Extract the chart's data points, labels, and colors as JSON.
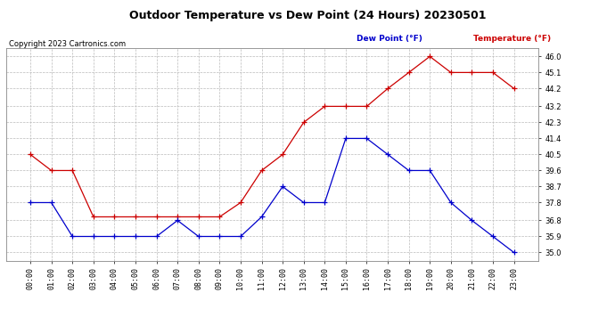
{
  "title": "Outdoor Temperature vs Dew Point (24 Hours) 20230501",
  "copyright_text": "Copyright 2023 Cartronics.com",
  "legend_dew": "Dew Point (°F)",
  "legend_temp": "Temperature (°F)",
  "hours": [
    "00:00",
    "01:00",
    "02:00",
    "03:00",
    "04:00",
    "05:00",
    "06:00",
    "07:00",
    "08:00",
    "09:00",
    "10:00",
    "11:00",
    "12:00",
    "13:00",
    "14:00",
    "15:00",
    "16:00",
    "17:00",
    "18:00",
    "19:00",
    "20:00",
    "21:00",
    "22:00",
    "23:00"
  ],
  "temperature": [
    40.5,
    39.6,
    39.6,
    37.0,
    37.0,
    37.0,
    37.0,
    37.0,
    37.0,
    37.0,
    37.8,
    39.6,
    40.5,
    42.3,
    43.2,
    43.2,
    43.2,
    44.2,
    45.1,
    46.0,
    45.1,
    45.1,
    45.1,
    44.2
  ],
  "dew_point": [
    37.8,
    37.8,
    35.9,
    35.9,
    35.9,
    35.9,
    35.9,
    36.8,
    35.9,
    35.9,
    35.9,
    37.0,
    38.7,
    37.8,
    37.8,
    41.4,
    41.4,
    40.5,
    39.6,
    39.6,
    37.8,
    36.8,
    35.9,
    35.0
  ],
  "temp_color": "#cc0000",
  "dew_color": "#0000cc",
  "ylim_min": 34.55,
  "ylim_max": 46.45,
  "yticks": [
    35.0,
    35.9,
    36.8,
    37.8,
    38.7,
    39.6,
    40.5,
    41.4,
    42.3,
    43.2,
    44.2,
    45.1,
    46.0
  ],
  "background_color": "#ffffff",
  "grid_color": "#bbbbbb",
  "title_fontsize": 9,
  "label_fontsize": 6,
  "copyright_fontsize": 6,
  "legend_fontsize": 6.5,
  "marker_size": 4,
  "linewidth": 0.9
}
